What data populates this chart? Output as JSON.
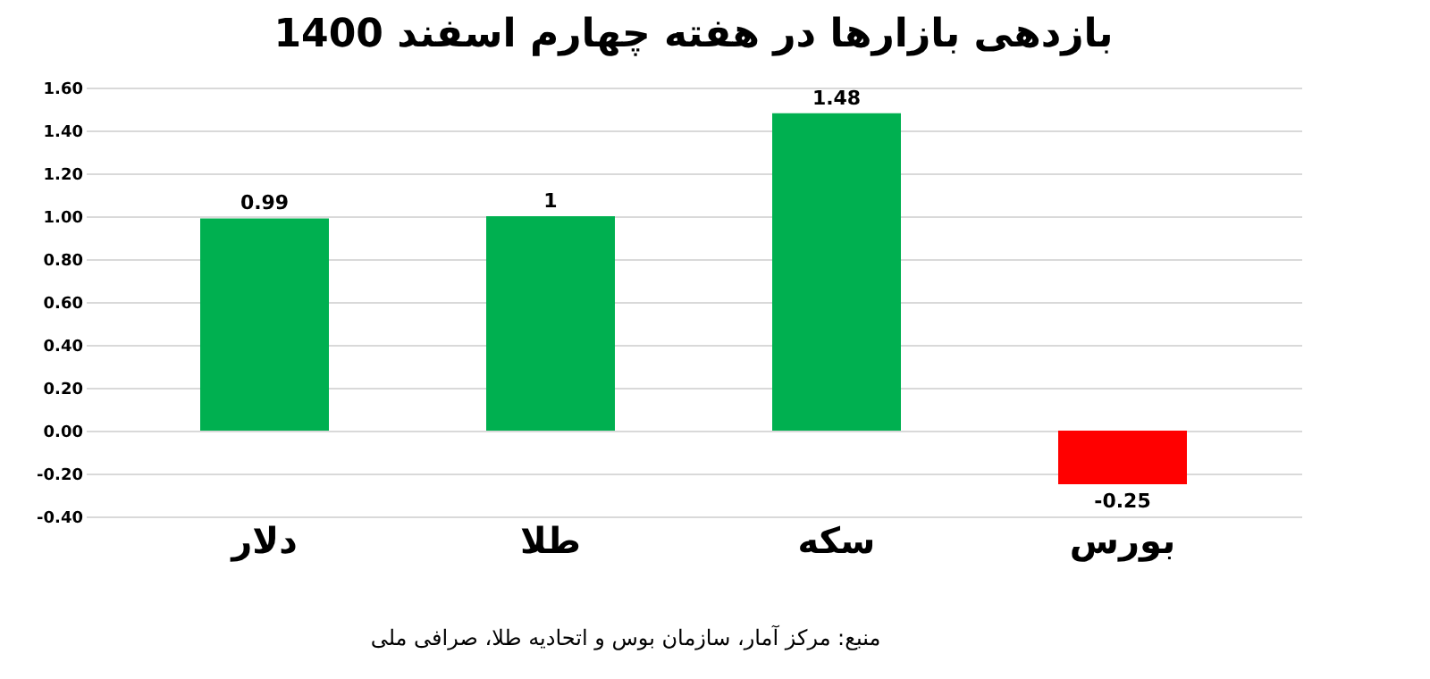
{
  "chart_data": {
    "type": "bar",
    "title": "بازدهی بازارها در هفته چهارم اسفند 1400",
    "categories": [
      "دلار",
      "طلا",
      "سکه",
      "بورس"
    ],
    "values": [
      0.99,
      1,
      1.48,
      -0.25
    ],
    "colors": [
      "#00b050",
      "#00b050",
      "#00b050",
      "#ff0000"
    ],
    "ylim": [
      -0.4,
      1.6
    ],
    "yticks": [
      {
        "value": -0.4,
        "label": "-0.40"
      },
      {
        "value": -0.2,
        "label": "-0.20"
      },
      {
        "value": 0,
        "label": "0.00"
      },
      {
        "value": 0.2,
        "label": "0.20"
      },
      {
        "value": 0.4,
        "label": "0.40"
      },
      {
        "value": 0.6,
        "label": "0.60"
      },
      {
        "value": 0.8,
        "label": "0.80"
      },
      {
        "value": 1,
        "label": "1.00"
      },
      {
        "value": 1.2,
        "label": "1.20"
      },
      {
        "value": 1.4,
        "label": "1.40"
      },
      {
        "value": 1.6,
        "label": "1.60"
      }
    ],
    "grid": "y",
    "data_labels": true,
    "annotations": [
      "منبع: مرکز آمار، سازمان بوس و اتحادیه طلا، صرافی ملی"
    ]
  }
}
